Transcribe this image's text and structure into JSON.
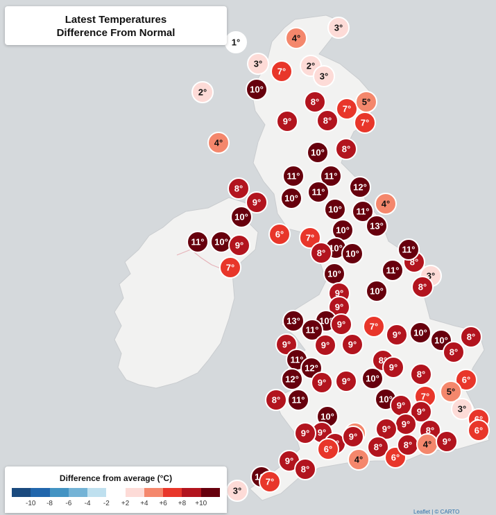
{
  "title": {
    "line1": "Latest Temperatures",
    "line2": "Difference From Normal"
  },
  "legend": {
    "title": "Difference from average (°C)",
    "ticks": [
      "-10",
      "-8",
      "-6",
      "-4",
      "-2",
      "+2",
      "+4",
      "+6",
      "+8",
      "+10"
    ],
    "colors": [
      "#1a4a7e",
      "#2166ac",
      "#4393c3",
      "#74b3d6",
      "#bfe0ef",
      "#ffffff",
      "#fddbd7",
      "#f4876c",
      "#e8362a",
      "#b2141e",
      "#67000d"
    ]
  },
  "attribution": "Leaflet | © CARTO",
  "colors": {
    "sea": "#d5d9dc",
    "land": "#f2f2f1",
    "border": "#e6b2b8"
  },
  "stations": [
    {
      "v": 1,
      "t": "1°"
    },
    {
      "v": 4,
      "t": "4°"
    },
    {
      "v": 3,
      "t": "3°"
    },
    {
      "v": 3,
      "t": "3°"
    },
    {
      "v": 7,
      "t": "7°"
    },
    {
      "v": 2,
      "t": "2°"
    },
    {
      "v": 3,
      "t": "3°"
    },
    {
      "v": 2,
      "t": "2°"
    },
    {
      "v": 10,
      "t": "10°"
    },
    {
      "v": 8,
      "t": "8°"
    },
    {
      "v": 7,
      "t": "7°"
    },
    {
      "v": 5,
      "t": "5°"
    },
    {
      "v": 9,
      "t": "9°"
    },
    {
      "v": 8,
      "t": "8°"
    },
    {
      "v": 7,
      "t": "7°"
    },
    {
      "v": 4,
      "t": "4°"
    },
    {
      "v": 10,
      "t": "10°"
    },
    {
      "v": 8,
      "t": "8°"
    },
    {
      "v": 11,
      "t": "11°"
    },
    {
      "v": 11,
      "t": "11°"
    },
    {
      "v": 11,
      "t": "11°"
    },
    {
      "v": 12,
      "t": "12°"
    },
    {
      "v": 8,
      "t": "8°"
    },
    {
      "v": 9,
      "t": "9°"
    },
    {
      "v": 10,
      "t": "10°"
    },
    {
      "v": 4,
      "t": "4°"
    },
    {
      "v": 10,
      "t": "10°"
    },
    {
      "v": 11,
      "t": "11°"
    },
    {
      "v": 10,
      "t": "10°"
    },
    {
      "v": 13,
      "t": "13°"
    },
    {
      "v": 6,
      "t": "6°"
    },
    {
      "v": 7,
      "t": "7°"
    },
    {
      "v": 10,
      "t": "10°"
    },
    {
      "v": 11,
      "t": "11°"
    },
    {
      "v": 10,
      "t": "10°"
    },
    {
      "v": 9,
      "t": "9°"
    },
    {
      "v": 10,
      "t": "10°"
    },
    {
      "v": 8,
      "t": "8°"
    },
    {
      "v": 10,
      "t": "10°"
    },
    {
      "v": 7,
      "t": "7°"
    },
    {
      "v": 11,
      "t": "11°"
    },
    {
      "v": 8,
      "t": "8°"
    },
    {
      "v": 11,
      "t": "11°"
    },
    {
      "v": 3,
      "t": "3°"
    },
    {
      "v": 10,
      "t": "10°"
    },
    {
      "v": 8,
      "t": "8°"
    },
    {
      "v": 9,
      "t": "9°"
    },
    {
      "v": 10,
      "t": "10°"
    },
    {
      "v": 9,
      "t": "9°"
    },
    {
      "v": 13,
      "t": "13°"
    },
    {
      "v": 10,
      "t": "10°"
    },
    {
      "v": 9,
      "t": "9°"
    },
    {
      "v": 11,
      "t": "11°"
    },
    {
      "v": 7,
      "t": "7°"
    },
    {
      "v": 9,
      "t": "9°"
    },
    {
      "v": 10,
      "t": "10°"
    },
    {
      "v": 10,
      "t": "10°"
    },
    {
      "v": 8,
      "t": "8°"
    },
    {
      "v": 8,
      "t": "8°"
    },
    {
      "v": 9,
      "t": "9°"
    },
    {
      "v": 9,
      "t": "9°"
    },
    {
      "v": 11,
      "t": "11°"
    },
    {
      "v": 9,
      "t": "9°"
    },
    {
      "v": 8,
      "t": "8°"
    },
    {
      "v": 12,
      "t": "12°"
    },
    {
      "v": 9,
      "t": "9°"
    },
    {
      "v": 12,
      "t": "12°"
    },
    {
      "v": 9,
      "t": "9°"
    },
    {
      "v": 9,
      "t": "9°"
    },
    {
      "v": 10,
      "t": "10°"
    },
    {
      "v": 8,
      "t": "8°"
    },
    {
      "v": 6,
      "t": "6°"
    },
    {
      "v": 8,
      "t": "8°"
    },
    {
      "v": 11,
      "t": "11°"
    },
    {
      "v": 10,
      "t": "10°"
    },
    {
      "v": 5,
      "t": "5°"
    },
    {
      "v": 7,
      "t": "7°"
    },
    {
      "v": 9,
      "t": "9°"
    },
    {
      "v": 3,
      "t": "3°"
    },
    {
      "v": 10,
      "t": "10°"
    },
    {
      "v": 9,
      "t": "9°"
    },
    {
      "v": 9,
      "t": "9°"
    },
    {
      "v": 9,
      "t": "9°"
    },
    {
      "v": 9,
      "t": "9°"
    },
    {
      "v": 8,
      "t": "8°"
    },
    {
      "v": 5,
      "t": "5°"
    },
    {
      "v": 6,
      "t": "6°"
    },
    {
      "v": 9,
      "t": "9°"
    },
    {
      "v": 8,
      "t": "8°"
    },
    {
      "v": 9,
      "t": "9°"
    },
    {
      "v": 6,
      "t": "6°"
    },
    {
      "v": 4,
      "t": "4°"
    },
    {
      "v": 8,
      "t": "8°"
    },
    {
      "v": 6,
      "t": "6°"
    },
    {
      "v": 8,
      "t": "8°"
    },
    {
      "v": 4,
      "t": "4°"
    },
    {
      "v": 9,
      "t": "9°"
    },
    {
      "v": 9,
      "t": "9°"
    },
    {
      "v": 8,
      "t": "8°"
    },
    {
      "v": 6,
      "t": "6°"
    },
    {
      "v": 3,
      "t": "3°"
    },
    {
      "v": 10,
      "t": "10°"
    },
    {
      "v": 7,
      "t": "7°"
    }
  ]
}
